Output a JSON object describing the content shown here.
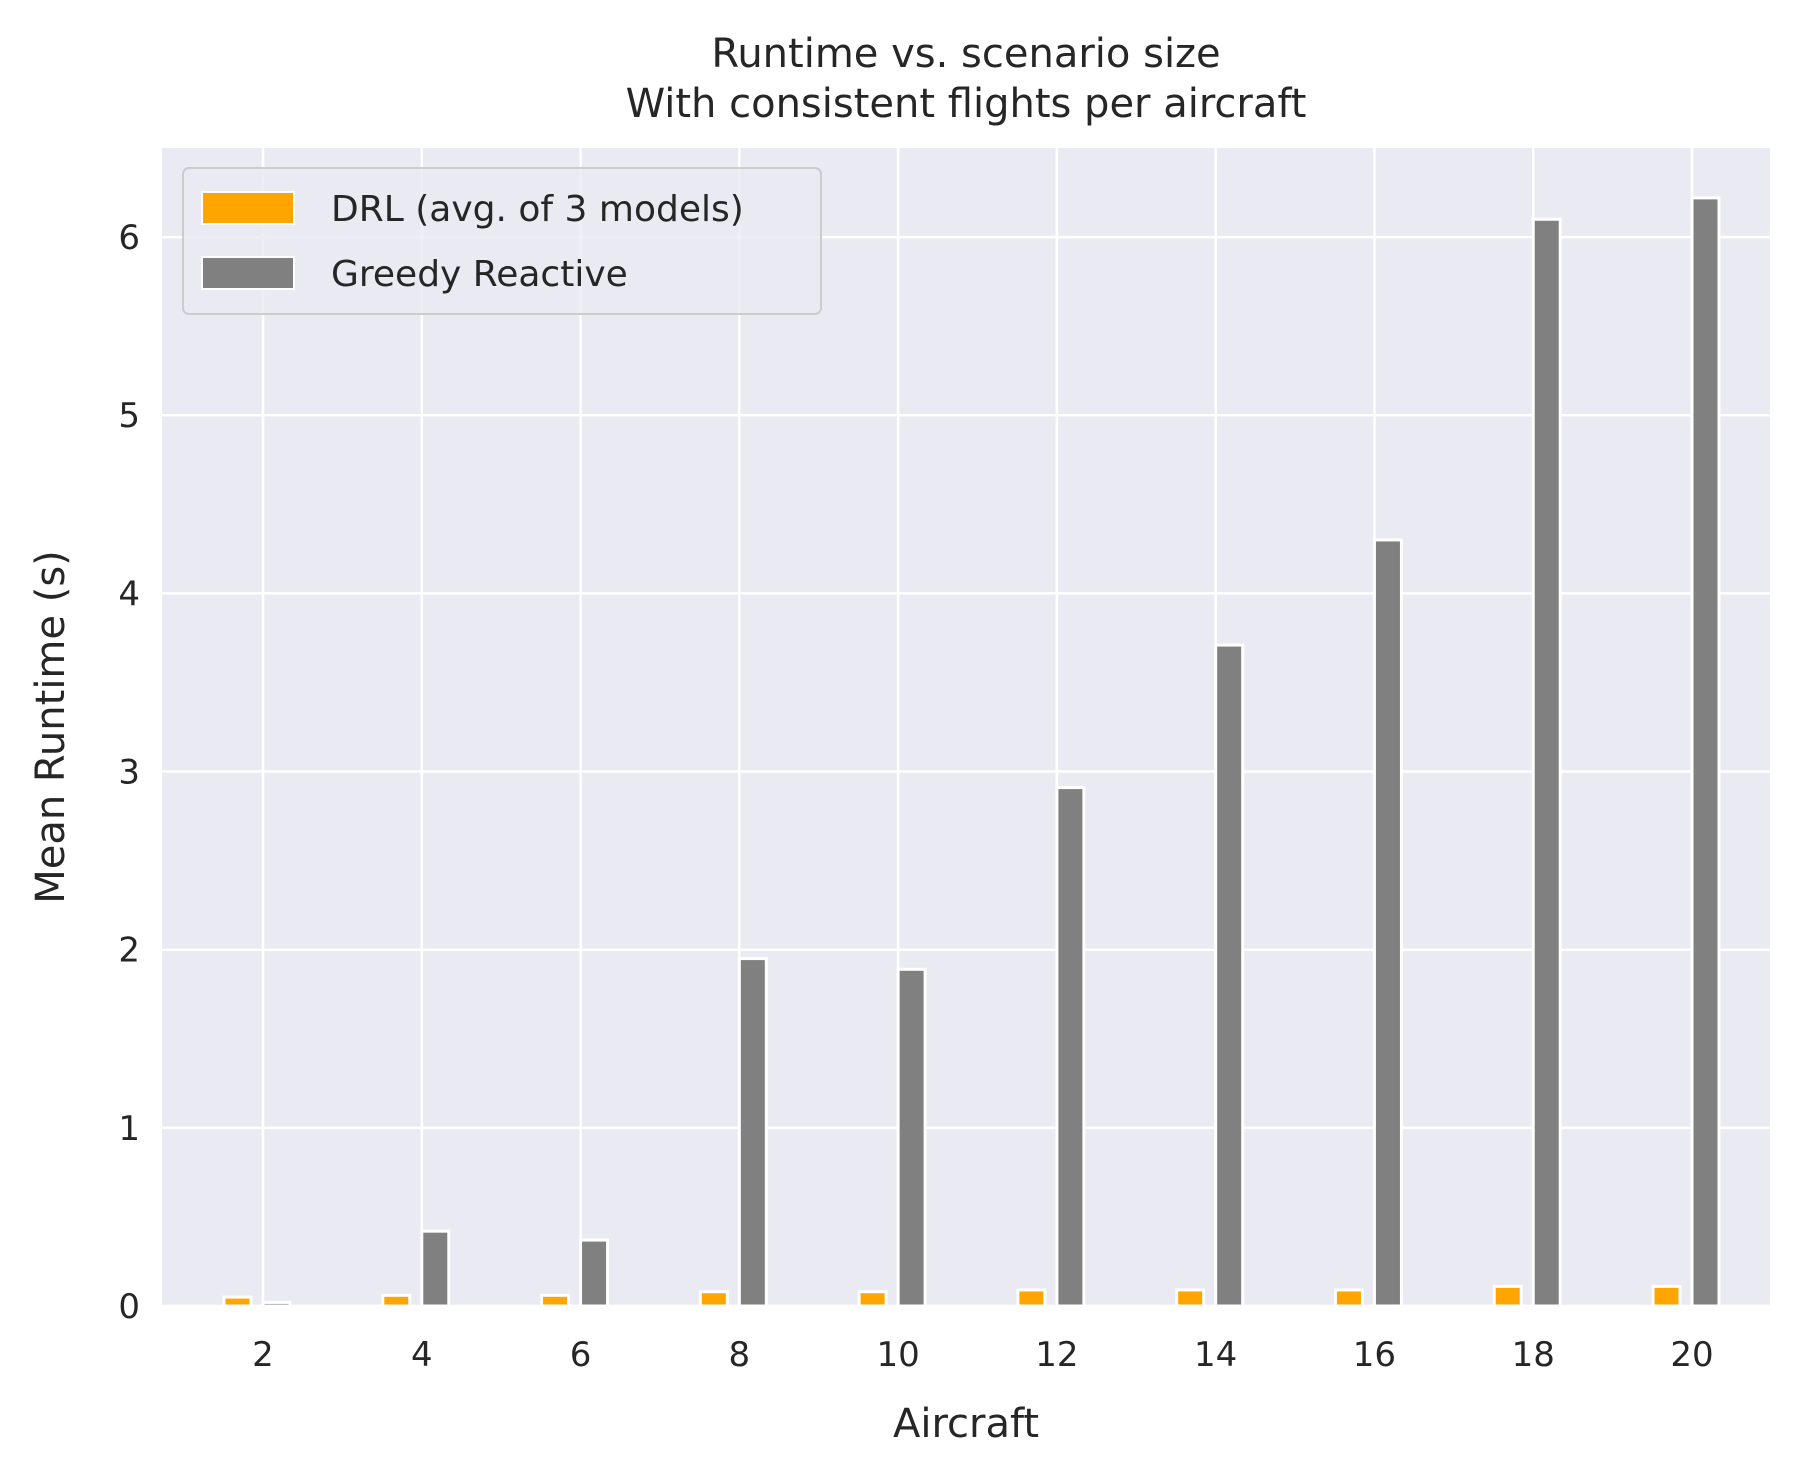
{
  "chart_data": {
    "type": "bar",
    "title": "Runtime vs. scenario size",
    "subtitle": "With consistent flights per aircraft",
    "xlabel": "Aircraft",
    "ylabel": "Mean Runtime (s)",
    "categories": [
      "2",
      "4",
      "6",
      "8",
      "10",
      "12",
      "14",
      "16",
      "18",
      "20"
    ],
    "yticks": [
      "0",
      "1",
      "2",
      "3",
      "4",
      "5",
      "6"
    ],
    "ylim": [
      0,
      6.5
    ],
    "grid": true,
    "legend_position": "top-left",
    "series": [
      {
        "name": "DRL (avg. of 3 models)",
        "color": "#ffa500",
        "values": [
          0.05,
          0.06,
          0.06,
          0.08,
          0.08,
          0.09,
          0.09,
          0.09,
          0.11,
          0.11
        ]
      },
      {
        "name": "Greedy Reactive",
        "color": "#808080",
        "values": [
          0.02,
          0.42,
          0.37,
          1.95,
          1.89,
          2.91,
          3.71,
          4.3,
          6.1,
          6.22
        ]
      }
    ],
    "background": "#eaeaf2"
  }
}
